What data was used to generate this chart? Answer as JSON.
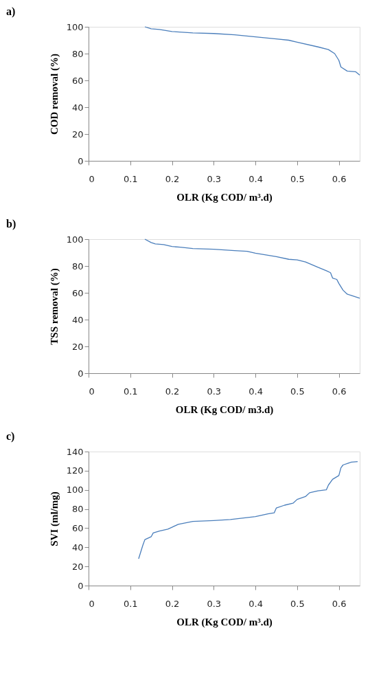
{
  "chart_data": [
    {
      "type": "line",
      "title": "a)",
      "xlabel": "OLR (Kg COD/ m³.d)",
      "ylabel": "COD removal (%)",
      "xlim": [
        0,
        0.65
      ],
      "xticks": [
        0,
        0.1,
        0.2,
        0.3,
        0.4,
        0.5,
        0.6
      ],
      "ylim": [
        0,
        100
      ],
      "yticks": [
        0,
        20,
        40,
        60,
        80,
        100
      ],
      "grid": false,
      "marker": "none",
      "line_style": "solid",
      "series": [
        {
          "color": "#4a7ebb",
          "x": [
            0.135,
            0.15,
            0.17,
            0.2,
            0.25,
            0.3,
            0.35,
            0.4,
            0.45,
            0.48,
            0.5,
            0.55,
            0.575,
            0.59,
            0.6,
            0.605,
            0.62,
            0.64,
            0.65
          ],
          "values": [
            100,
            98.5,
            98,
            96.5,
            95.5,
            95,
            94,
            92.5,
            91,
            90,
            88.5,
            85,
            83,
            80,
            75,
            70,
            67,
            66.5,
            64
          ]
        }
      ]
    },
    {
      "type": "line",
      "title": "b)",
      "xlabel": "OLR (Kg COD/ m3.d)",
      "ylabel": "TSS removal (%)",
      "xlim": [
        0,
        0.65
      ],
      "xticks": [
        0,
        0.1,
        0.2,
        0.3,
        0.4,
        0.5,
        0.6
      ],
      "ylim": [
        0,
        100
      ],
      "yticks": [
        0,
        20,
        40,
        60,
        80,
        100
      ],
      "grid": false,
      "marker": "none",
      "line_style": "solid",
      "series": [
        {
          "color": "#4a7ebb",
          "x": [
            0.135,
            0.15,
            0.16,
            0.18,
            0.2,
            0.22,
            0.25,
            0.3,
            0.35,
            0.38,
            0.4,
            0.45,
            0.48,
            0.5,
            0.52,
            0.55,
            0.57,
            0.58,
            0.585,
            0.595,
            0.6,
            0.61,
            0.62,
            0.63,
            0.65
          ],
          "values": [
            100,
            97.5,
            96.5,
            96,
            94.5,
            94,
            93,
            92.5,
            91.5,
            91,
            89.5,
            87,
            85,
            84.5,
            83,
            79,
            76.5,
            75,
            71,
            70,
            67,
            62,
            59,
            58,
            56
          ]
        }
      ]
    },
    {
      "type": "line",
      "title": "c)",
      "xlabel": "OLR (Kg COD/ m³.d)",
      "ylabel": "SVI (ml/mg)",
      "xlim": [
        0,
        0.65
      ],
      "xticks": [
        0,
        0.1,
        0.2,
        0.3,
        0.4,
        0.5,
        0.6
      ],
      "ylim": [
        0,
        140
      ],
      "yticks": [
        0,
        20,
        40,
        60,
        80,
        100,
        120,
        140
      ],
      "grid": false,
      "marker": "none",
      "line_style": "solid",
      "series": [
        {
          "color": "#4a7ebb",
          "x": [
            0.12,
            0.13,
            0.135,
            0.15,
            0.155,
            0.17,
            0.19,
            0.2,
            0.215,
            0.25,
            0.3,
            0.34,
            0.4,
            0.43,
            0.445,
            0.45,
            0.47,
            0.49,
            0.5,
            0.52,
            0.53,
            0.55,
            0.57,
            0.575,
            0.585,
            0.6,
            0.605,
            0.61,
            0.63,
            0.645
          ],
          "values": [
            28,
            42,
            48,
            51,
            55,
            57,
            59,
            61,
            64,
            67,
            68,
            69,
            72,
            75,
            76,
            81,
            84,
            86,
            90,
            93,
            97,
            99,
            100,
            105,
            111,
            115,
            123,
            126,
            129,
            129.5
          ]
        }
      ]
    }
  ]
}
